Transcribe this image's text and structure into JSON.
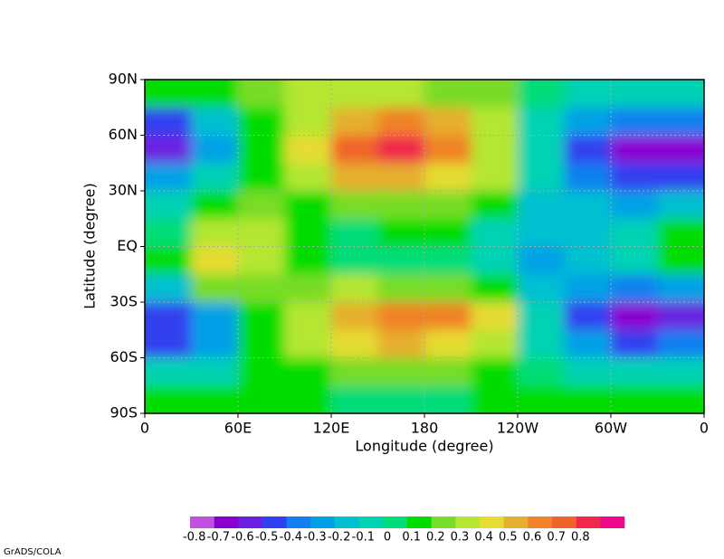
{
  "chart_data": {
    "type": "contour",
    "xlabel": "Longitude  (degree)",
    "ylabel": "Latitude  (degree)",
    "credit": "GrADS/COLA",
    "xlim": [
      0,
      360
    ],
    "ylim": [
      -90,
      90
    ],
    "xticks": [
      {
        "value": 0,
        "label": "0"
      },
      {
        "value": 60,
        "label": "60E"
      },
      {
        "value": 120,
        "label": "120E"
      },
      180,
      {
        "value": 240,
        "label": "120W"
      },
      {
        "value": 300,
        "label": "60W"
      },
      {
        "value": 360,
        "label": "0"
      }
    ],
    "yticks": [
      {
        "value": -90,
        "label": "90S"
      },
      {
        "value": -60,
        "label": "60S"
      },
      {
        "value": -30,
        "label": "30S"
      },
      {
        "value": 0,
        "label": "EQ"
      },
      {
        "value": 30,
        "label": "30N"
      },
      {
        "value": 60,
        "label": "60N"
      },
      {
        "value": 90,
        "label": "90N"
      }
    ],
    "grid": true,
    "x": [
      15,
      45,
      75,
      105,
      135,
      165,
      195,
      225,
      255,
      285,
      315,
      345
    ],
    "y": [
      82.5,
      67.5,
      52.5,
      37.5,
      22.5,
      7.5,
      -7.5,
      -22.5,
      -37.5,
      -52.5,
      -67.5,
      -82.5
    ],
    "z": [
      [
        0.05,
        0.05,
        0.15,
        0.25,
        0.25,
        0.25,
        0.2,
        0.15,
        -0.05,
        -0.1,
        -0.1,
        -0.1
      ],
      [
        -0.55,
        -0.2,
        0.1,
        0.3,
        0.5,
        0.55,
        0.45,
        0.25,
        -0.1,
        -0.3,
        -0.45,
        -0.4
      ],
      [
        -0.65,
        -0.35,
        0.05,
        0.35,
        0.65,
        0.75,
        0.55,
        0.3,
        -0.15,
        -0.55,
        -0.75,
        -0.7
      ],
      [
        -0.35,
        -0.15,
        0.05,
        0.3,
        0.45,
        0.45,
        0.35,
        0.25,
        -0.15,
        -0.4,
        -0.5,
        -0.5
      ],
      [
        -0.1,
        0.05,
        0.15,
        0.1,
        0.2,
        0.2,
        0.2,
        0.05,
        -0.25,
        -0.25,
        -0.3,
        -0.25
      ],
      [
        0.0,
        0.25,
        0.3,
        0.05,
        0.0,
        0.1,
        0.05,
        -0.1,
        -0.2,
        -0.25,
        -0.15,
        0.05
      ],
      [
        0.1,
        0.4,
        0.3,
        0.05,
        0.0,
        -0.05,
        -0.05,
        -0.1,
        -0.3,
        -0.2,
        -0.1,
        0.05
      ],
      [
        -0.2,
        0.15,
        0.15,
        0.2,
        0.3,
        0.2,
        0.15,
        0.05,
        -0.2,
        -0.3,
        -0.4,
        -0.35
      ],
      [
        -0.55,
        -0.3,
        0.05,
        0.3,
        0.45,
        0.55,
        0.6,
        0.35,
        -0.1,
        -0.5,
        -0.7,
        -0.6
      ],
      [
        -0.5,
        -0.3,
        0.05,
        0.25,
        0.35,
        0.45,
        0.4,
        0.25,
        -0.1,
        -0.35,
        -0.5,
        -0.45
      ],
      [
        -0.15,
        -0.1,
        0.05,
        0.1,
        0.15,
        0.15,
        0.15,
        0.05,
        -0.05,
        -0.1,
        -0.1,
        -0.1
      ],
      [
        0.05,
        0.05,
        0.05,
        0.05,
        0.0,
        0.0,
        0.0,
        0.05,
        0.05,
        0.05,
        0.05,
        0.05
      ]
    ],
    "levels": [
      -0.8,
      -0.7,
      -0.6,
      -0.5,
      -0.4,
      -0.3,
      -0.2,
      -0.1,
      0,
      0.1,
      0.2,
      0.3,
      0.4,
      0.5,
      0.6,
      0.7,
      0.8
    ],
    "colors": [
      "#c050e0",
      "#8a00d0",
      "#6a20e0",
      "#3040f0",
      "#1080f0",
      "#00a0e6",
      "#00c0d0",
      "#00d2b4",
      "#00dc78",
      "#00dc00",
      "#78dc28",
      "#b4e632",
      "#e6dc32",
      "#e6af2d",
      "#f08228",
      "#f0642a",
      "#f0284c",
      "#f0088c"
    ]
  }
}
